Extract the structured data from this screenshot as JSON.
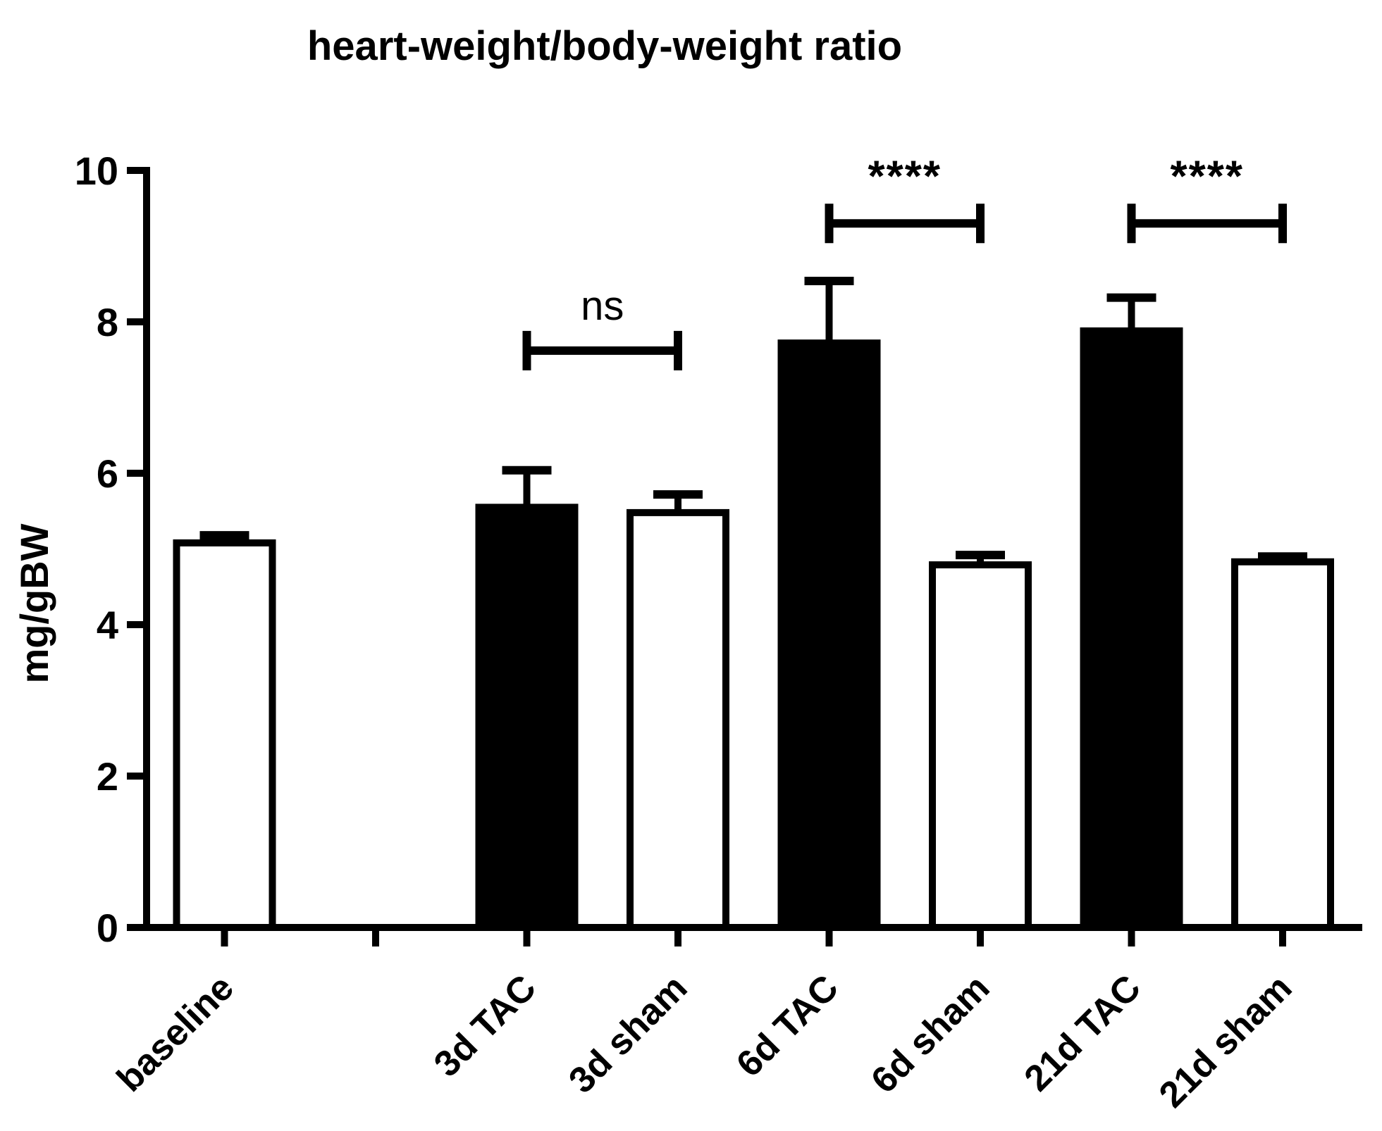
{
  "page": {
    "background": "#ffffff",
    "foreground": "#000000"
  },
  "chart_data": {
    "type": "bar",
    "title": "heart-weight/body-weight ratio",
    "ylabel": "mg/gBW",
    "xlabel": "",
    "ylim": [
      0,
      10
    ],
    "yticks": [
      0,
      2,
      4,
      6,
      8,
      10
    ],
    "grid": false,
    "x_slots": [
      "baseline",
      "",
      "3d TAC",
      "3d sham",
      "6d TAC",
      "6d sham",
      "21d TAC",
      "21d sham"
    ],
    "categories": [
      "baseline",
      "3d TAC",
      "3d sham",
      "6d TAC",
      "6d sham",
      "21d TAC",
      "21d sham"
    ],
    "values": [
      5.08,
      5.55,
      5.48,
      7.72,
      4.79,
      7.88,
      4.83
    ],
    "sem_upper": [
      0.1,
      0.49,
      0.24,
      0.82,
      0.13,
      0.44,
      0.07
    ],
    "bar_fills": [
      "#ffffff",
      "#000000",
      "#ffffff",
      "#000000",
      "#ffffff",
      "#000000",
      "#ffffff"
    ],
    "bar_outline_color": "#000000",
    "error_bar_color": "#000000",
    "axis_color": "#000000",
    "significance": [
      {
        "from": "3d TAC",
        "to": "3d sham",
        "label": "ns",
        "y": 7.62
      },
      {
        "from": "6d TAC",
        "to": "6d sham",
        "label": "****",
        "y": 9.3
      },
      {
        "from": "21d TAC",
        "to": "21d sham",
        "label": "****",
        "y": 9.3
      }
    ]
  }
}
